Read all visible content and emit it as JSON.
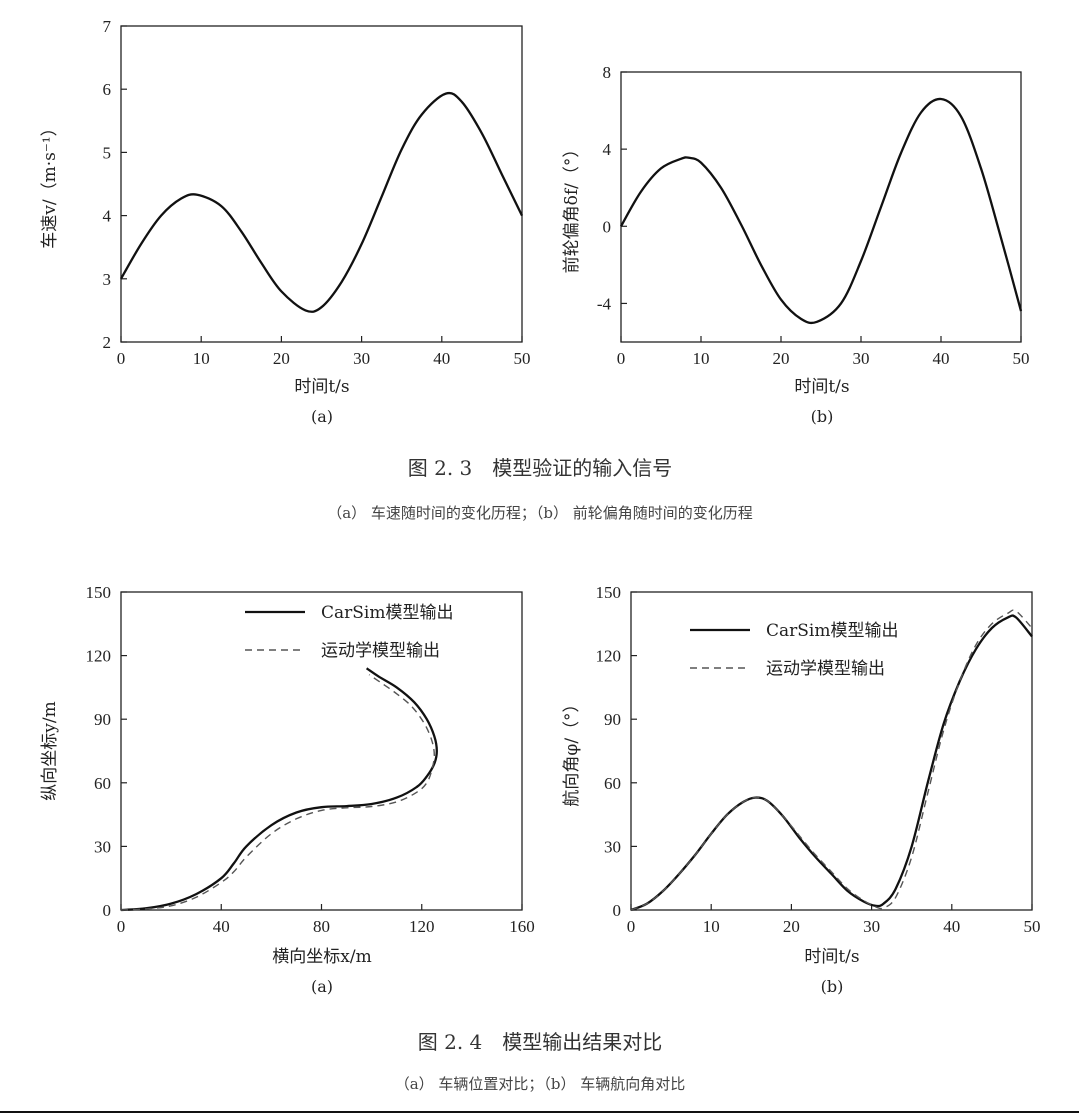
{
  "figures": [
    {
      "title": "图 2. 3　模型验证的输入信号",
      "caption": "（a） 车速随时间的变化历程；（b） 前轮偏角随时间的变化历程"
    },
    {
      "title": "图 2. 4　模型输出结果对比",
      "caption": "（a） 车辆位置对比；（b） 车辆航向角对比"
    }
  ],
  "chart_data": [
    {
      "type": "line",
      "panel": "(a)",
      "xlabel": "时间t/s",
      "ylabel": "车速v/（m·s⁻¹）",
      "xlim": [
        0,
        50
      ],
      "ylim": [
        2,
        7
      ],
      "xticks": [
        "0",
        "10",
        "20",
        "30",
        "40",
        "50"
      ],
      "yticks": [
        "2",
        "3",
        "4",
        "5",
        "6",
        "7"
      ],
      "legend": "none",
      "series": [
        {
          "x": [
            0,
            2.5,
            5,
            7.5,
            9.5,
            12.5,
            15,
            17.5,
            20,
            23,
            25,
            27.5,
            30,
            32.5,
            35,
            37.5,
            40.5,
            42.5,
            45,
            47.5,
            50
          ],
          "y": [
            3.0,
            3.55,
            4.0,
            4.27,
            4.33,
            4.15,
            3.75,
            3.25,
            2.8,
            2.5,
            2.55,
            2.95,
            3.55,
            4.3,
            5.05,
            5.6,
            5.93,
            5.8,
            5.3,
            4.65,
            4.0
          ]
        }
      ]
    },
    {
      "type": "line",
      "panel": "(b)",
      "xlabel": "时间t/s",
      "ylabel": "前轮偏角δf/（°）",
      "xlim": [
        0,
        50
      ],
      "ylim": [
        -6,
        8
      ],
      "xticks": [
        "0",
        "10",
        "20",
        "30",
        "40",
        "50"
      ],
      "yticks": [
        "-4",
        "0",
        "4",
        "8"
      ],
      "legend": "none",
      "series": [
        {
          "x": [
            0,
            2.5,
            5,
            7.5,
            8.5,
            10,
            12.5,
            15,
            17.5,
            20,
            22.5,
            24.5,
            27.5,
            30,
            32.5,
            35,
            37.5,
            40,
            42.5,
            45,
            47.5,
            50
          ],
          "y": [
            0,
            1.8,
            3.0,
            3.5,
            3.55,
            3.3,
            2.0,
            0.1,
            -2.0,
            -3.8,
            -4.8,
            -4.95,
            -4.0,
            -1.8,
            1.0,
            3.8,
            5.9,
            6.6,
            5.7,
            3.0,
            -0.6,
            -4.4
          ]
        }
      ]
    },
    {
      "type": "line",
      "panel": "(a)",
      "xlabel": "横向坐标x/m",
      "ylabel": "纵向坐标y/m",
      "xlim": [
        0,
        160
      ],
      "ylim": [
        0,
        150
      ],
      "xticks": [
        "0",
        "40",
        "80",
        "120",
        "160"
      ],
      "yticks": [
        "0",
        "30",
        "60",
        "90",
        "120",
        "150"
      ],
      "legend": "top-right",
      "series": [
        {
          "name": "CarSim模型输出",
          "style": "solid",
          "x": [
            0,
            10,
            20,
            30,
            40,
            45,
            50,
            60,
            70,
            80,
            90,
            100,
            110,
            118,
            122,
            125,
            126,
            125,
            122,
            117,
            110,
            103,
            98
          ],
          "y": [
            0,
            0.8,
            3,
            7.5,
            15,
            22,
            30,
            40,
            46,
            48.5,
            49,
            50,
            53,
            58,
            63,
            69,
            75,
            82,
            90,
            98,
            105,
            110,
            114
          ]
        },
        {
          "name": "运动学模型输出",
          "style": "dashed",
          "x": [
            0,
            10,
            20,
            30,
            40,
            45,
            50,
            60,
            70,
            80,
            90,
            100,
            110,
            118,
            122,
            124,
            125,
            124,
            121,
            116,
            110,
            104,
            99
          ],
          "y": [
            0,
            0.5,
            2,
            6,
            13,
            18,
            25,
            36,
            43,
            47,
            48.2,
            48.8,
            51,
            55.5,
            60,
            66,
            73,
            80,
            88,
            96,
            102,
            107,
            111
          ]
        }
      ]
    },
    {
      "type": "line",
      "panel": "(b)",
      "xlabel": "时间t/s",
      "ylabel": "航向角φ/（°）",
      "xlim": [
        0,
        50
      ],
      "ylim": [
        0,
        150
      ],
      "xticks": [
        "0",
        "10",
        "20",
        "30",
        "40",
        "50"
      ],
      "yticks": [
        "0",
        "30",
        "60",
        "90",
        "120",
        "150"
      ],
      "legend": "top-left",
      "series": [
        {
          "name": "CarSim模型输出",
          "style": "solid",
          "x": [
            0,
            2,
            4,
            6,
            8,
            10,
            12,
            14,
            15.5,
            17,
            19,
            21,
            23,
            25,
            27,
            29,
            30.5,
            31.5,
            33,
            35,
            37,
            39,
            41,
            43,
            45,
            47,
            48,
            50
          ],
          "y": [
            0,
            3,
            9,
            17,
            26,
            36,
            45,
            51,
            53,
            51.5,
            44,
            34,
            25,
            17,
            9,
            4,
            2,
            3,
            10,
            30,
            60,
            88,
            108,
            123,
            133,
            138,
            138,
            129
          ]
        },
        {
          "name": "运动学模型输出",
          "style": "dashed",
          "x": [
            0,
            2,
            4,
            6,
            8,
            10,
            12,
            14,
            15.5,
            17,
            19,
            21,
            23,
            25,
            27,
            29,
            30.5,
            31.5,
            33,
            35,
            37,
            39,
            41,
            43,
            45,
            47,
            48,
            50
          ],
          "y": [
            0,
            3,
            9,
            17,
            26,
            36,
            45,
            51,
            53,
            51.5,
            44,
            35,
            26,
            18,
            10,
            4.5,
            1.5,
            1,
            6,
            25,
            55,
            85,
            108,
            125,
            135,
            140,
            141,
            133
          ]
        }
      ]
    }
  ]
}
